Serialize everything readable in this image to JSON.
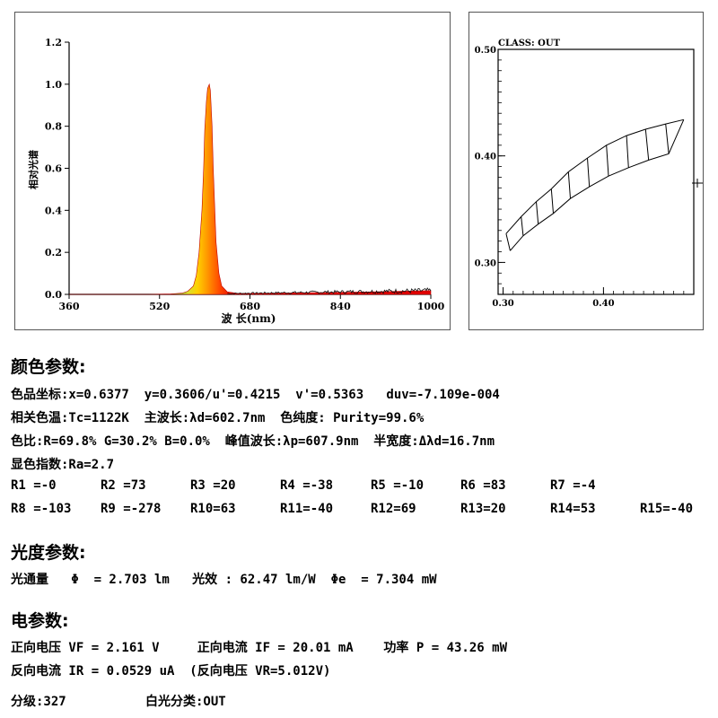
{
  "chart_data": [
    {
      "type": "area",
      "ylabel": "相对光谱",
      "xlabel": "波 长(nm)",
      "xlim": [
        360,
        1000
      ],
      "ylim": [
        0,
        1.2
      ],
      "x_ticks": [
        360,
        520,
        680,
        840,
        1000
      ],
      "y_ticks": [
        0.0,
        0.2,
        0.4,
        0.6,
        0.8,
        1.0,
        1.2
      ],
      "x_tick_labels": [
        "360",
        "520",
        "680",
        "840",
        "1000"
      ],
      "y_tick_labels": [
        "0.0",
        "0.2",
        "0.4",
        "0.6",
        "0.8",
        "1.0",
        "1.2"
      ],
      "series": [
        {
          "x": [
            360,
            500,
            540,
            560,
            570,
            580,
            585,
            590,
            595,
            598,
            600,
            603,
            605,
            608,
            610,
            613,
            615,
            620,
            625,
            630,
            640,
            660,
            700,
            800,
            900,
            1000
          ],
          "y": [
            0,
            0,
            0.002,
            0.006,
            0.015,
            0.04,
            0.09,
            0.2,
            0.4,
            0.6,
            0.78,
            0.92,
            0.98,
            1.0,
            0.97,
            0.8,
            0.6,
            0.25,
            0.1,
            0.04,
            0.012,
            0.004,
            0.005,
            0.008,
            0.012,
            0.018
          ]
        }
      ],
      "grid": false
    },
    {
      "type": "scatter",
      "title": "CLASS: OUT",
      "xlim": [
        0.295,
        0.49
      ],
      "ylim": [
        0.27,
        0.5
      ],
      "x_ticks": [
        0.3,
        0.4
      ],
      "y_ticks": [
        0.3,
        0.4,
        0.5
      ],
      "x_tick_labels": [
        "0.30",
        "0.40"
      ],
      "y_tick_labels": [
        "0.30",
        "0.40",
        "0.50"
      ],
      "bins": {
        "upper_boundary": [
          [
            0.303,
            0.327
          ],
          [
            0.318,
            0.343
          ],
          [
            0.333,
            0.357
          ],
          [
            0.348,
            0.369
          ],
          [
            0.365,
            0.385
          ],
          [
            0.384,
            0.398
          ],
          [
            0.403,
            0.41
          ],
          [
            0.423,
            0.419
          ],
          [
            0.442,
            0.425
          ],
          [
            0.462,
            0.43
          ],
          [
            0.48,
            0.434
          ]
        ],
        "lower_boundary": [
          [
            0.307,
            0.311
          ],
          [
            0.32,
            0.325
          ],
          [
            0.335,
            0.336
          ],
          [
            0.35,
            0.346
          ],
          [
            0.367,
            0.36
          ],
          [
            0.386,
            0.371
          ],
          [
            0.405,
            0.381
          ],
          [
            0.425,
            0.389
          ],
          [
            0.445,
            0.396
          ],
          [
            0.465,
            0.402
          ],
          [
            0.48,
            0.434
          ]
        ]
      },
      "grid": false
    }
  ],
  "color_section": {
    "title": "颜色参数:",
    "line1": "色品坐标:x=0.6377  y=0.3606/u'=0.4215  v'=0.5363   duv=-7.109e-004",
    "line2": "相关色温:Tc=1122K  主波长:λd=602.7nm  色纯度: Purity=99.6%",
    "line3": "色比:R=69.8% G=30.2% B=0.0%  峰值波长:λp=607.9nm  半宽度:Δλd=16.7nm",
    "line4": "显色指数:Ra=2.7",
    "r_row1": [
      "R1 =-0",
      "R2 =73",
      "R3 =20",
      "R4 =-38",
      "R5 =-10",
      "R6 =83",
      "R7 =-4"
    ],
    "r_row2": [
      "R8 =-103",
      "R9 =-278",
      "R10=63",
      "R11=-40",
      "R12=69",
      "R13=20",
      "R14=53",
      "R15=-40"
    ]
  },
  "photometric_section": {
    "title": "光度参数:",
    "line1": "光通量   Φ  = 2.703 lm   光效 : 62.47 lm/W  Φe  = 7.304 mW"
  },
  "electrical_section": {
    "title": "电参数:",
    "line1": "正向电压 VF = 2.161 V     正向电流 IF = 20.01 mA    功率 P = 43.26 mW",
    "line2": "反向电流 IR = 0.0529 uA  (反向电压 VR=5.012V)"
  },
  "classification": {
    "grade": "分级:327",
    "white_class": "白光分类:OUT"
  }
}
